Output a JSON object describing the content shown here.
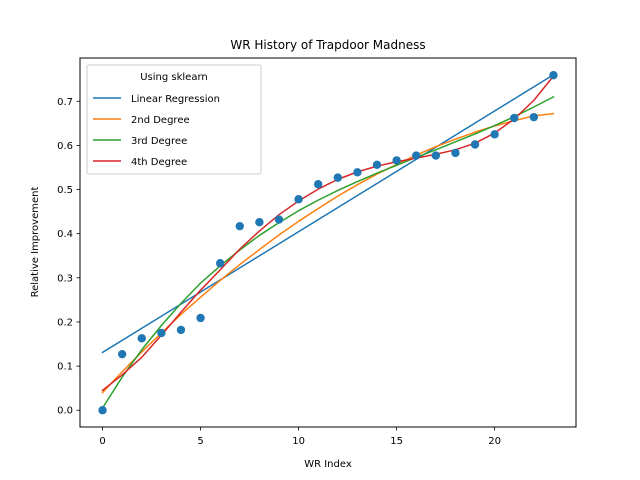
{
  "chart_data": {
    "type": "scatter",
    "title": "WR History of Trapdoor Madness",
    "xlabel": "WR Index",
    "ylabel": "Relative Improvement",
    "xlim": [
      -1.15,
      24.15
    ],
    "ylim": [
      -0.038,
      0.798
    ],
    "xticks": [
      0,
      5,
      10,
      15,
      20
    ],
    "yticks": [
      0.0,
      0.1,
      0.2,
      0.3,
      0.4,
      0.5,
      0.6,
      0.7
    ],
    "grid": false,
    "legend": {
      "title": "Using sklearn",
      "placement": "top-left",
      "entries": [
        "Linear Regression",
        "2nd Degree",
        "3rd Degree",
        "4th Degree"
      ]
    },
    "scatter": {
      "color": "#1f77b4",
      "x": [
        0,
        1,
        2,
        3,
        4,
        5,
        6,
        7,
        8,
        9,
        10,
        11,
        12,
        13,
        14,
        15,
        16,
        17,
        18,
        19,
        20,
        21,
        22,
        23
      ],
      "y": [
        0.0,
        0.127,
        0.163,
        0.175,
        0.182,
        0.209,
        0.333,
        0.417,
        0.426,
        0.432,
        0.478,
        0.512,
        0.527,
        0.539,
        0.556,
        0.566,
        0.577,
        0.577,
        0.583,
        0.602,
        0.625,
        0.662,
        0.664,
        0.759
      ]
    },
    "series": [
      {
        "name": "Linear Regression",
        "color": "#1f77b4",
        "x": [
          0,
          23
        ],
        "y": [
          0.131,
          0.76
        ]
      },
      {
        "name": "2nd Degree",
        "color": "#ff7f0e",
        "x": [
          0,
          1,
          2,
          3,
          4,
          5,
          6,
          7,
          8,
          9,
          10,
          11,
          12,
          13,
          14,
          15,
          16,
          17,
          18,
          19,
          20,
          21,
          22,
          23
        ],
        "y": [
          0.04,
          0.087,
          0.132,
          0.175,
          0.217,
          0.256,
          0.294,
          0.33,
          0.364,
          0.397,
          0.428,
          0.457,
          0.485,
          0.511,
          0.535,
          0.557,
          0.578,
          0.597,
          0.614,
          0.63,
          0.644,
          0.656,
          0.667,
          0.672
        ]
      },
      {
        "name": "3rd Degree",
        "color": "#2ca02c",
        "x": [
          0,
          1,
          2,
          3,
          4,
          5,
          6,
          7,
          8,
          9,
          10,
          11,
          12,
          13,
          14,
          15,
          16,
          17,
          18,
          19,
          20,
          21,
          22,
          23
        ],
        "y": [
          0.005,
          0.075,
          0.137,
          0.192,
          0.242,
          0.288,
          0.327,
          0.363,
          0.396,
          0.425,
          0.452,
          0.476,
          0.498,
          0.518,
          0.537,
          0.555,
          0.573,
          0.59,
          0.608,
          0.626,
          0.645,
          0.665,
          0.687,
          0.71
        ]
      },
      {
        "name": "4th Degree",
        "color": "#d62728",
        "x": [
          0,
          1,
          2,
          3,
          4,
          5,
          6,
          7,
          8,
          9,
          10,
          11,
          12,
          13,
          14,
          15,
          16,
          17,
          18,
          19,
          20,
          21,
          22,
          23
        ],
        "y": [
          0.045,
          0.08,
          0.12,
          0.17,
          0.222,
          0.272,
          0.318,
          0.365,
          0.406,
          0.443,
          0.474,
          0.501,
          0.523,
          0.54,
          0.553,
          0.563,
          0.571,
          0.58,
          0.59,
          0.605,
          0.628,
          0.66,
          0.702,
          0.757
        ]
      }
    ]
  }
}
